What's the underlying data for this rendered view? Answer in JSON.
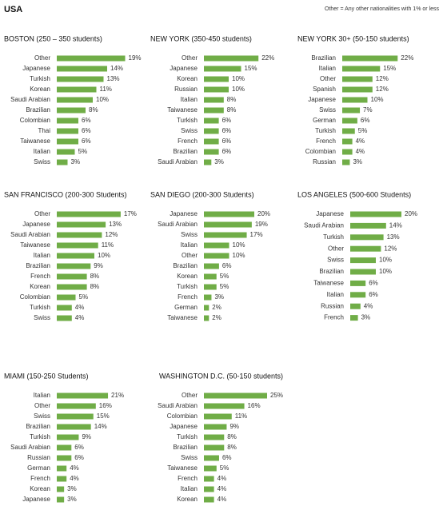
{
  "header": {
    "title": "USA",
    "note": "Other = Any other nationalities with 1% or less"
  },
  "chart_data": [
    {
      "type": "bar",
      "orientation": "horizontal",
      "color": "#70ad47",
      "title": "BOSTON (250 – 350 students)",
      "categories": [
        "Other",
        "Japanese",
        "Turkish",
        "Korean",
        "Saudi Arabian",
        "Brazilian",
        "Colombian",
        "Thai",
        "Taiwanese",
        "Italian",
        "Swiss"
      ],
      "values": [
        19,
        14,
        13,
        11,
        10,
        8,
        6,
        6,
        6,
        5,
        3
      ],
      "value_labels": [
        "19%",
        "14%",
        "13%",
        "11%",
        "10%",
        "8%",
        "6%",
        "6%",
        "6%",
        "5%",
        "3%"
      ]
    },
    {
      "type": "bar",
      "orientation": "horizontal",
      "color": "#70ad47",
      "title": "NEW YORK (350-450 students)",
      "categories": [
        "Other",
        "Japanese",
        "Korean",
        "Russian",
        "Italian",
        "Taiwanese",
        "Turkish",
        "Swiss",
        "French",
        "Brazilian",
        "Saudi Arabian"
      ],
      "values": [
        22,
        15,
        10,
        10,
        8,
        8,
        6,
        6,
        6,
        6,
        3
      ],
      "value_labels": [
        "22%",
        "15%",
        "10%",
        "10%",
        "8%",
        "8%",
        "6%",
        "6%",
        "6%",
        "6%",
        "3%"
      ]
    },
    {
      "type": "bar",
      "orientation": "horizontal",
      "color": "#70ad47",
      "title": "NEW YORK 30+ (50-150 students)",
      "categories": [
        "Brazilian",
        "Italian",
        "Other",
        "Spanish",
        "Japanese",
        "Swiss",
        "German",
        "Turkish",
        "French",
        "Colombian",
        "Russian"
      ],
      "values": [
        22,
        15,
        12,
        12,
        10,
        7,
        6,
        5,
        4,
        4,
        3
      ],
      "value_labels": [
        "22%",
        "15%",
        "12%",
        "12%",
        "10%",
        "7%",
        "6%",
        "5%",
        "4%",
        "4%",
        "3%"
      ]
    },
    {
      "type": "bar",
      "orientation": "horizontal",
      "color": "#70ad47",
      "title": "SAN FRANCISCO (200-300 Students)",
      "categories": [
        "Other",
        "Japanese",
        "Saudi Arabian",
        "Taiwanese",
        "Italian",
        "Brazilian",
        "French",
        "Korean",
        "Colombian",
        "Turkish",
        "Swiss"
      ],
      "values": [
        17,
        13,
        12,
        11,
        10,
        9,
        8,
        8,
        5,
        4,
        4
      ],
      "value_labels": [
        "17%",
        "13%",
        "12%",
        "11%",
        "10%",
        "9%",
        "8%",
        "8%",
        "5%",
        "4%",
        "4%"
      ]
    },
    {
      "type": "bar",
      "orientation": "horizontal",
      "color": "#70ad47",
      "title": "SAN DIEGO (200-300 Students)",
      "categories": [
        "Japanese",
        "Saudi Arabian",
        "Swiss",
        "Italian",
        "Other",
        "Brazilian",
        "Korean",
        "Turkish",
        "French",
        "German",
        "Taiwanese"
      ],
      "values": [
        20,
        19,
        17,
        10,
        10,
        6,
        5,
        5,
        3,
        2,
        2
      ],
      "value_labels": [
        "20%",
        "19%",
        "17%",
        "10%",
        "10%",
        "6%",
        "5%",
        "5%",
        "3%",
        "2%",
        "2%"
      ]
    },
    {
      "type": "bar",
      "orientation": "horizontal",
      "color": "#70ad47",
      "title": "LOS ANGELES (500-600 Students)",
      "categories": [
        "Japanese",
        "Saudi Arabian",
        "Turkish",
        "Other",
        "Swiss",
        "Brazilian",
        "Taiwanese",
        "Italian",
        "Russian",
        "French"
      ],
      "values": [
        20,
        14,
        13,
        12,
        10,
        10,
        6,
        6,
        4,
        3
      ],
      "value_labels": [
        "20%",
        "14%",
        "13%",
        "12%",
        "10%",
        "10%",
        "6%",
        "6%",
        "4%",
        "3%"
      ]
    },
    {
      "type": "bar",
      "orientation": "horizontal",
      "color": "#70ad47",
      "title": "MIAMI (150-250 Students)",
      "categories": [
        "Italian",
        "Other",
        "Swiss",
        "Brazilian",
        "Turkish",
        "Saudi Arabian",
        "Russian",
        "German",
        "French",
        "Korean",
        "Japanese"
      ],
      "values": [
        21,
        16,
        15,
        14,
        9,
        6,
        6,
        4,
        4,
        3,
        3
      ],
      "value_labels": [
        "21%",
        "16%",
        "15%",
        "14%",
        "9%",
        "6%",
        "6%",
        "4%",
        "4%",
        "3%",
        "3%"
      ]
    },
    {
      "type": "bar",
      "orientation": "horizontal",
      "color": "#70ad47",
      "title": "WASHINGTON D.C. (50-150 students)",
      "categories": [
        "Other",
        "Saudi Arabian",
        "Colombian",
        "Japanese",
        "Turkish",
        "Brazilian",
        "Swiss",
        "Taiwanese",
        "French",
        "Italian",
        "Korean"
      ],
      "values": [
        25,
        16,
        11,
        9,
        8,
        8,
        6,
        5,
        4,
        4,
        4
      ],
      "value_labels": [
        "25%",
        "16%",
        "11%",
        "9%",
        "8%",
        "8%",
        "6%",
        "5%",
        "4%",
        "4%",
        "4%"
      ]
    }
  ]
}
